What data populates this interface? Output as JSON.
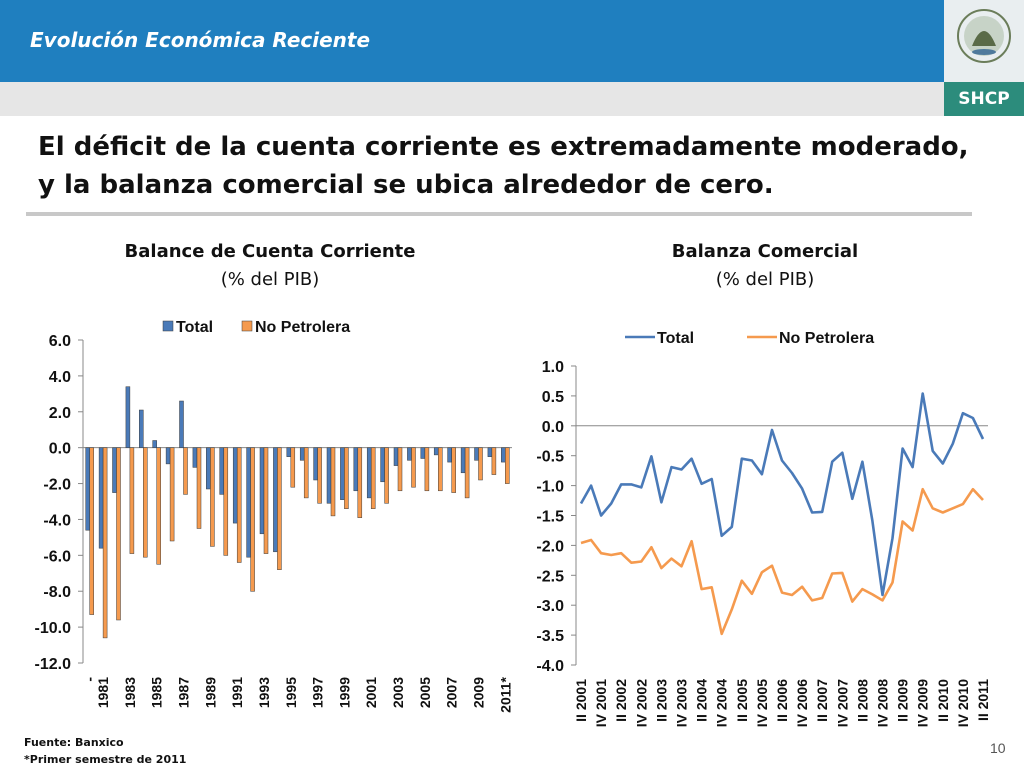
{
  "header": {
    "title": "Evolución Económica Reciente",
    "brand": "SHCP"
  },
  "headline": "El déficit de la cuenta corriente es extremadamente moderado, y la balanza comercial se ubica alrededor de cero.",
  "footer": {
    "source": "Fuente: Banxico",
    "note": "*Primer semestre de 2011",
    "page": "10"
  },
  "colors": {
    "total": "#4a7ab8",
    "no_petrolera": "#f59a4e",
    "header_blue": "#1f7fbf",
    "brand_green": "#2c8c7c"
  },
  "chart_data": [
    {
      "type": "bar",
      "title": "Balance de Cuenta Corriente",
      "subtitle": "(% del PIB)",
      "legend_position": "top",
      "ylim": [
        -12,
        6
      ],
      "y_ticks": [
        "6.0",
        "4.0",
        "2.0",
        "0.0",
        "-2.0",
        "-4.0",
        "-6.0",
        "-8.0",
        "-10.0",
        "-12.0"
      ],
      "categories": [
        "-",
        "1981",
        "1982",
        "1983",
        "1984",
        "1985",
        "1986",
        "1987",
        "1988",
        "1989",
        "1990",
        "1991",
        "1992",
        "1993",
        "1994",
        "1995",
        "1996",
        "1997",
        "1998",
        "1999",
        "2000",
        "2001",
        "2002",
        "2003",
        "2004",
        "2005",
        "2006",
        "2007",
        "2008",
        "2009",
        "2010",
        "2011*"
      ],
      "x_tick_labels": [
        "-",
        "1981",
        "1983",
        "1985",
        "1987",
        "1989",
        "1991",
        "1993",
        "1995",
        "1997",
        "1999",
        "2001",
        "2003",
        "2005",
        "2007",
        "2009",
        "2011*"
      ],
      "series": [
        {
          "name": "Total",
          "values": [
            -4.6,
            -5.6,
            -2.5,
            3.4,
            2.1,
            0.4,
            -0.9,
            2.6,
            -1.1,
            -2.3,
            -2.6,
            -4.2,
            -6.1,
            -4.8,
            -5.8,
            -0.5,
            -0.7,
            -1.8,
            -3.1,
            -2.9,
            -2.4,
            -2.8,
            -1.9,
            -1.0,
            -0.7,
            -0.6,
            -0.4,
            -0.8,
            -1.4,
            -0.7,
            -0.5,
            -0.8
          ]
        },
        {
          "name": "No Petrolera",
          "values": [
            -9.3,
            -10.6,
            -9.6,
            -5.9,
            -6.1,
            -6.5,
            -5.2,
            -2.6,
            -4.5,
            -5.5,
            -6.0,
            -6.4,
            -8.0,
            -5.9,
            -6.8,
            -2.2,
            -2.8,
            -3.1,
            -3.8,
            -3.4,
            -3.9,
            -3.4,
            -3.1,
            -2.4,
            -2.2,
            -2.4,
            -2.4,
            -2.5,
            -2.8,
            -1.8,
            -1.5,
            -2.0
          ]
        }
      ]
    },
    {
      "type": "line",
      "title": "Balanza Comercial",
      "subtitle": "(% del PIB)",
      "legend_position": "top",
      "ylim": [
        -4.0,
        1.0
      ],
      "y_ticks": [
        "1.0",
        "0.5",
        "0.0",
        "-0.5",
        "-1.0",
        "-1.5",
        "-2.0",
        "-2.5",
        "-3.0",
        "-3.5",
        "-4.0"
      ],
      "categories": [
        "II 2001",
        "III 2001",
        "IV 2001",
        "I 2002",
        "II 2002",
        "III 2002",
        "IV 2002",
        "I 2003",
        "II 2003",
        "III 2003",
        "IV 2003",
        "I 2004",
        "II 2004",
        "III 2004",
        "IV 2004",
        "I 2005",
        "II 2005",
        "III 2005",
        "IV 2005",
        "I 2006",
        "II 2006",
        "III 2006",
        "IV 2006",
        "I 2007",
        "II 2007",
        "III 2007",
        "IV 2007",
        "I 2008",
        "II 2008",
        "III 2008",
        "IV 2008",
        "I 2009",
        "II 2009",
        "III 2009",
        "IV 2009",
        "I 2010",
        "II 2010",
        "III 2010",
        "IV 2010",
        "I 2011",
        "II 2011"
      ],
      "x_tick_labels": [
        "II 2001",
        "IV 2001",
        "II 2002",
        "IV 2002",
        "II 2003",
        "IV 2003",
        "II 2004",
        "IV 2004",
        "II 2005",
        "IV 2005",
        "II 2006",
        "IV 2006",
        "II 2007",
        "IV 2007",
        "II 2008",
        "IV 2008",
        "II 2009",
        "IV 2009",
        "II 2010",
        "IV 2010",
        "II 2011"
      ],
      "series": [
        {
          "name": "Total",
          "values": [
            -1.3,
            -1.0,
            -1.5,
            -1.3,
            -0.98,
            -0.98,
            -1.03,
            -0.51,
            -1.28,
            -0.69,
            -0.73,
            -0.55,
            -0.97,
            -0.89,
            -1.84,
            -1.69,
            -0.55,
            -0.58,
            -0.81,
            -0.07,
            -0.58,
            -0.79,
            -1.05,
            -1.45,
            -1.44,
            -0.6,
            -0.45,
            -1.22,
            -0.6,
            -1.59,
            -2.83,
            -1.88,
            -0.38,
            -0.69,
            0.54,
            -0.42,
            -0.63,
            -0.3,
            0.21,
            0.13,
            -0.22
          ]
        },
        {
          "name": "No Petrolera",
          "values": [
            -1.96,
            -1.91,
            -2.13,
            -2.16,
            -2.13,
            -2.29,
            -2.27,
            -2.03,
            -2.38,
            -2.22,
            -2.35,
            -1.93,
            -2.73,
            -2.7,
            -3.48,
            -3.07,
            -2.59,
            -2.81,
            -2.45,
            -2.34,
            -2.79,
            -2.83,
            -2.69,
            -2.92,
            -2.88,
            -2.47,
            -2.46,
            -2.94,
            -2.73,
            -2.82,
            -2.92,
            -2.62,
            -1.6,
            -1.75,
            -1.06,
            -1.38,
            -1.45,
            -1.38,
            -1.31,
            -1.06,
            -1.24
          ]
        }
      ]
    }
  ]
}
